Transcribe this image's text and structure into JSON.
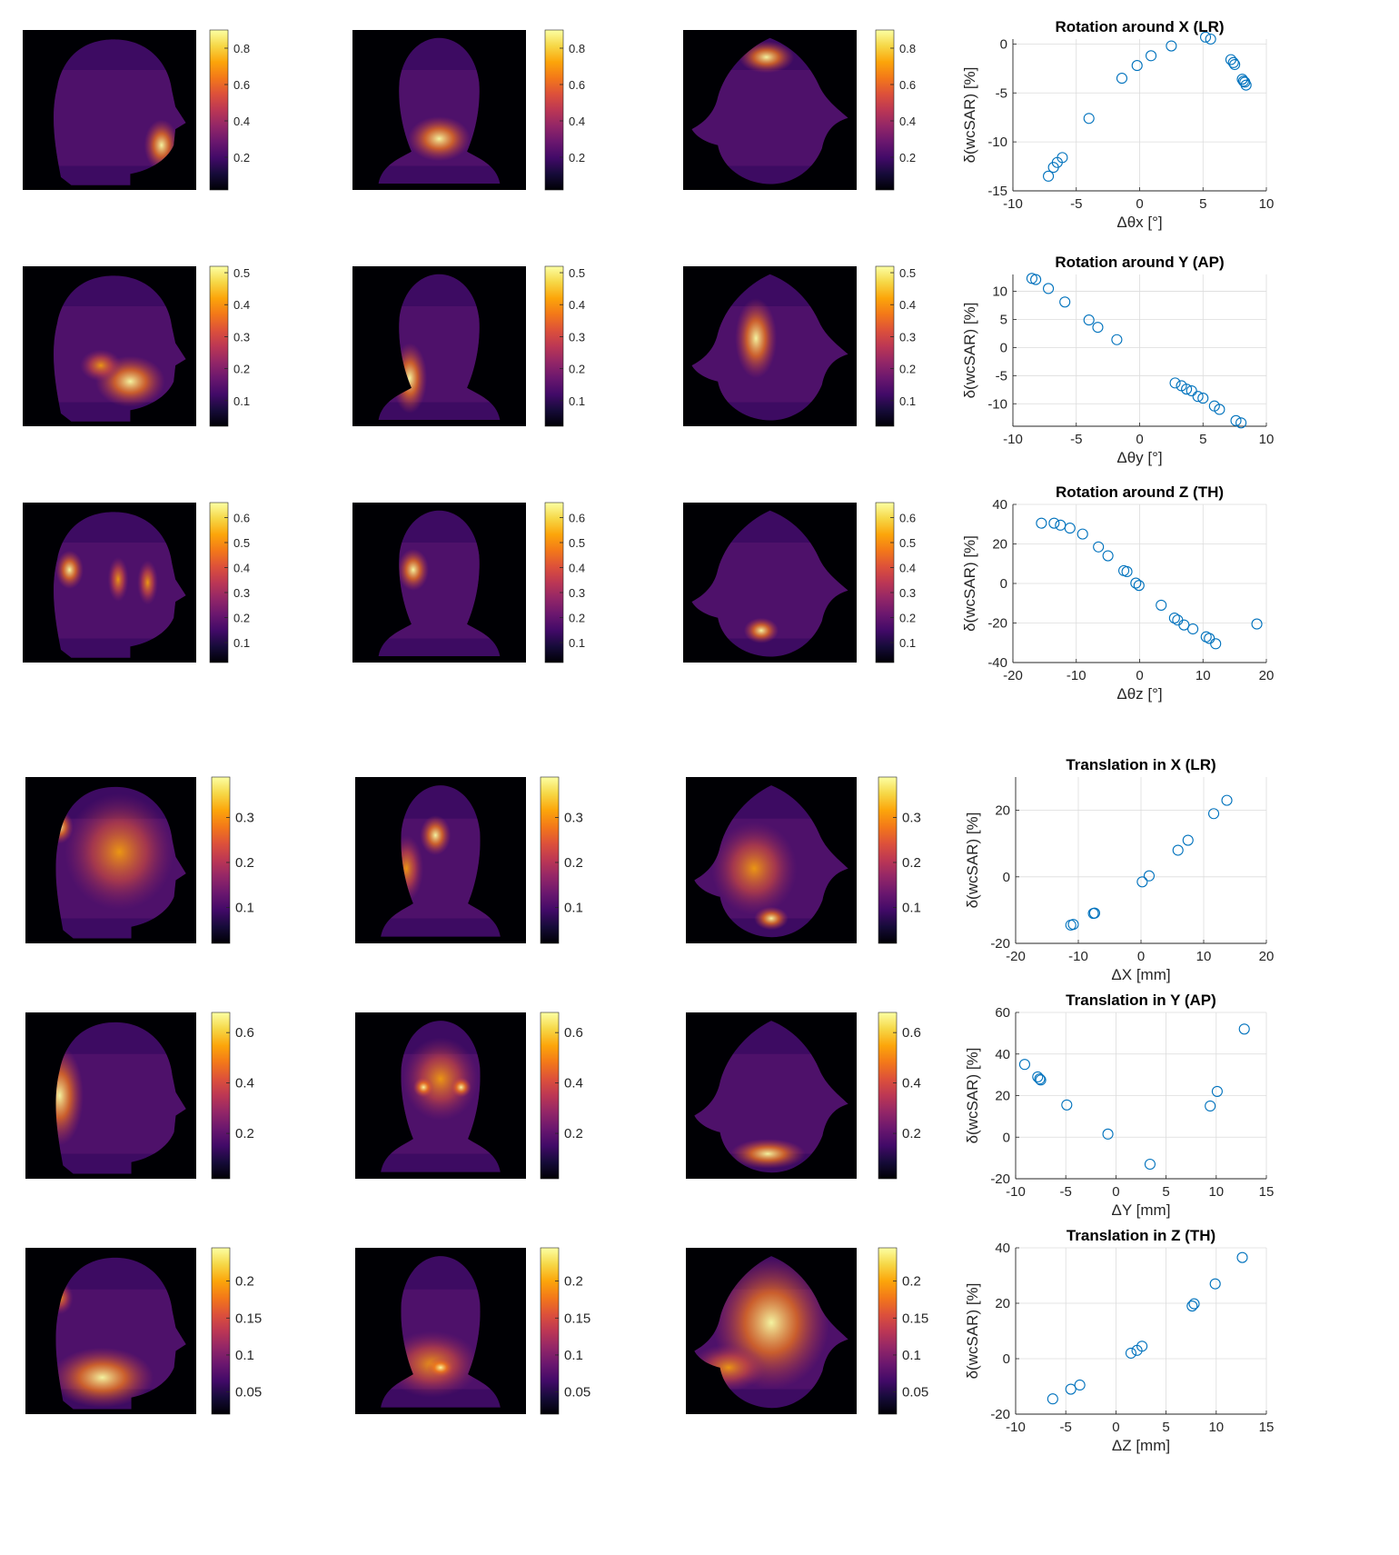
{
  "rows": [
    {
      "colorbar": {
        "min": 0.02,
        "max": 0.9,
        "ticks": [
          "0.2",
          "0.4",
          "0.6",
          "0.8"
        ]
      },
      "chart": {
        "title": "Rotation around X (LR)",
        "xlabel": "Δθx [°]",
        "ylabel": "δ(wcSAR) [%]",
        "xlim": [
          -10,
          10
        ],
        "ylim": [
          -15,
          0.5
        ],
        "xticks": [
          -10,
          -5,
          0,
          5,
          10
        ],
        "yticks": [
          -15,
          -10,
          -5,
          0
        ]
      }
    },
    {
      "colorbar": {
        "min": 0.02,
        "max": 0.52,
        "ticks": [
          "0.1",
          "0.2",
          "0.3",
          "0.4",
          "0.5"
        ]
      },
      "chart": {
        "title": "Rotation around Y (AP)",
        "xlabel": "Δθy [°]",
        "ylabel": "δ(wcSAR) [%]",
        "xlim": [
          -10,
          10
        ],
        "ylim": [
          -14,
          13
        ],
        "xticks": [
          -10,
          -5,
          0,
          5,
          10
        ],
        "yticks": [
          -10,
          -5,
          0,
          5,
          10
        ]
      }
    },
    {
      "colorbar": {
        "min": 0.02,
        "max": 0.66,
        "ticks": [
          "0.1",
          "0.2",
          "0.3",
          "0.4",
          "0.5",
          "0.6"
        ]
      },
      "chart": {
        "title": "Rotation around Z (TH)",
        "xlabel": "Δθz [°]",
        "ylabel": "δ(wcSAR) [%]",
        "xlim": [
          -20,
          20
        ],
        "ylim": [
          -40,
          40
        ],
        "xticks": [
          -20,
          -10,
          0,
          10,
          20
        ],
        "yticks": [
          -40,
          -20,
          0,
          20,
          40
        ]
      }
    },
    {
      "colorbar": {
        "min": 0.02,
        "max": 0.39,
        "ticks": [
          "0.1",
          "0.2",
          "0.3"
        ]
      },
      "chart": {
        "title": "Translation in X (LR)",
        "xlabel": "ΔX [mm]",
        "ylabel": "δ(wcSAR) [%]",
        "xlim": [
          -20,
          20
        ],
        "ylim": [
          -20,
          30
        ],
        "xticks": [
          -20,
          -10,
          0,
          10,
          20
        ],
        "yticks": [
          -20,
          0,
          20
        ]
      }
    },
    {
      "colorbar": {
        "min": 0.02,
        "max": 0.68,
        "ticks": [
          "0.2",
          "0.4",
          "0.6"
        ]
      },
      "chart": {
        "title": "Translation in Y (AP)",
        "xlabel": "ΔY [mm]",
        "ylabel": "δ(wcSAR) [%]",
        "xlim": [
          -10,
          15
        ],
        "ylim": [
          -20,
          60
        ],
        "xticks": [
          -10,
          -5,
          0,
          5,
          10,
          15
        ],
        "yticks": [
          -20,
          0,
          20,
          40,
          60
        ]
      }
    },
    {
      "colorbar": {
        "min": 0.02,
        "max": 0.245,
        "ticks": [
          "0.05",
          "0.1",
          "0.15",
          "0.2"
        ]
      },
      "chart": {
        "title": "Translation in Z (TH)",
        "xlabel": "ΔZ [mm]",
        "ylabel": "δ(wcSAR) [%]",
        "xlim": [
          -10,
          15
        ],
        "ylim": [
          -20,
          40
        ],
        "xticks": [
          -10,
          -5,
          0,
          5,
          10,
          15
        ],
        "yticks": [
          -20,
          0,
          20,
          40
        ]
      }
    }
  ],
  "chart_data": [
    {
      "type": "scatter",
      "title": "Rotation around X (LR)",
      "xlabel": "Δθx [°]",
      "ylabel": "δ(wcSAR) [%]",
      "xlim": [
        -10,
        10
      ],
      "ylim": [
        -15,
        0.5
      ],
      "grid": true,
      "points": [
        [
          -7.2,
          -13.5
        ],
        [
          -6.8,
          -12.6
        ],
        [
          -6.5,
          -12.1
        ],
        [
          -6.1,
          -11.6
        ],
        [
          -4,
          -7.6
        ],
        [
          -1.4,
          -3.5
        ],
        [
          -0.2,
          -2.2
        ],
        [
          0.9,
          -1.2
        ],
        [
          2.5,
          -0.2
        ],
        [
          5.2,
          0.7
        ],
        [
          5.6,
          0.5
        ],
        [
          7.2,
          -1.6
        ],
        [
          7.4,
          -1.9
        ],
        [
          7.5,
          -2.1
        ],
        [
          8.1,
          -3.6
        ],
        [
          8.2,
          -3.8
        ],
        [
          8.3,
          -3.9
        ],
        [
          8.4,
          -4.2
        ]
      ]
    },
    {
      "type": "scatter",
      "title": "Rotation around Y (AP)",
      "xlabel": "Δθy [°]",
      "ylabel": "δ(wcSAR) [%]",
      "xlim": [
        -10,
        10
      ],
      "ylim": [
        -14,
        13
      ],
      "grid": true,
      "points": [
        [
          -8.5,
          12.3
        ],
        [
          -8.2,
          12.1
        ],
        [
          -7.2,
          10.5
        ],
        [
          -5.9,
          8.1
        ],
        [
          -4,
          4.9
        ],
        [
          -3.3,
          3.6
        ],
        [
          -1.8,
          1.4
        ],
        [
          2.8,
          -6.3
        ],
        [
          3.3,
          -6.8
        ],
        [
          3.7,
          -7.4
        ],
        [
          4.1,
          -7.7
        ],
        [
          4.6,
          -8.7
        ],
        [
          5,
          -9
        ],
        [
          5.9,
          -10.4
        ],
        [
          6.3,
          -11
        ],
        [
          7.6,
          -13
        ],
        [
          8,
          -13.4
        ]
      ]
    },
    {
      "type": "scatter",
      "title": "Rotation around Z (TH)",
      "xlabel": "Δθz [°]",
      "ylabel": "δ(wcSAR) [%]",
      "xlim": [
        -20,
        20
      ],
      "ylim": [
        -40,
        40
      ],
      "grid": true,
      "points": [
        [
          -15.5,
          30.5
        ],
        [
          -13.5,
          30.5
        ],
        [
          -12.5,
          29.5
        ],
        [
          -11,
          28
        ],
        [
          -9,
          25
        ],
        [
          -6.5,
          18.5
        ],
        [
          -5,
          14
        ],
        [
          -2.5,
          6.5
        ],
        [
          -2,
          6
        ],
        [
          -0.6,
          0.2
        ],
        [
          -0.1,
          -1
        ],
        [
          3.4,
          -11
        ],
        [
          5.5,
          -17.5
        ],
        [
          6,
          -18.5
        ],
        [
          7,
          -21
        ],
        [
          8.4,
          -23
        ],
        [
          10.5,
          -27
        ],
        [
          11,
          -27.8
        ],
        [
          12,
          -30.5
        ],
        [
          18.5,
          -20.5
        ]
      ]
    },
    {
      "type": "scatter",
      "title": "Translation in X (LR)",
      "xlabel": "ΔX [mm]",
      "ylabel": "δ(wcSAR) [%]",
      "xlim": [
        -20,
        20
      ],
      "ylim": [
        -20,
        30
      ],
      "grid": true,
      "points": [
        [
          -11.2,
          -14.5
        ],
        [
          -10.8,
          -14.3
        ],
        [
          -7.6,
          -11
        ],
        [
          -7.4,
          -10.9
        ],
        [
          0.2,
          -1.5
        ],
        [
          1.3,
          0.3
        ],
        [
          5.9,
          8
        ],
        [
          7.5,
          11
        ],
        [
          11.6,
          19
        ],
        [
          13.7,
          23
        ]
      ]
    },
    {
      "type": "scatter",
      "title": "Translation in Y (AP)",
      "xlabel": "ΔY [mm]",
      "ylabel": "δ(wcSAR) [%]",
      "xlim": [
        -10,
        15
      ],
      "ylim": [
        -20,
        60
      ],
      "grid": true,
      "points": [
        [
          -9.1,
          35
        ],
        [
          -7.8,
          29
        ],
        [
          -7.6,
          28
        ],
        [
          -7.5,
          27.5
        ],
        [
          -4.9,
          15.5
        ],
        [
          -0.8,
          1.5
        ],
        [
          3.4,
          -13
        ],
        [
          9.4,
          15
        ],
        [
          10.1,
          22
        ],
        [
          12.8,
          52
        ]
      ]
    },
    {
      "type": "scatter",
      "title": "Translation in Z (TH)",
      "xlabel": "ΔZ [mm]",
      "ylabel": "δ(wcSAR) [%]",
      "xlim": [
        -10,
        15
      ],
      "ylim": [
        -20,
        40
      ],
      "grid": true,
      "points": [
        [
          -6.3,
          -14.5
        ],
        [
          -4.5,
          -11
        ],
        [
          -3.6,
          -9.5
        ],
        [
          1.5,
          2
        ],
        [
          2.1,
          3
        ],
        [
          2.6,
          4.5
        ],
        [
          7.6,
          19
        ],
        [
          7.8,
          19.8
        ],
        [
          9.9,
          27
        ],
        [
          12.6,
          36.5
        ]
      ]
    }
  ]
}
